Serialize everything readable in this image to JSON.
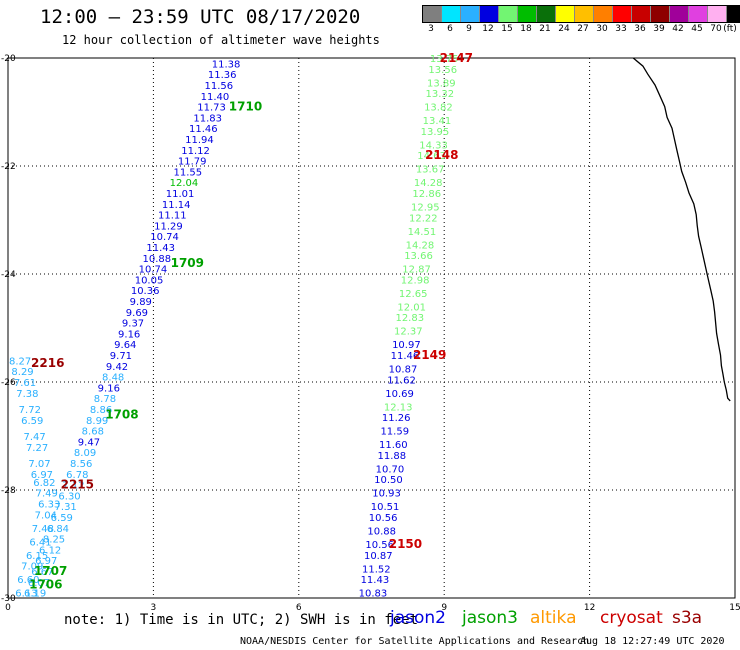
{
  "header": {
    "title": "12:00 – 23:59 UTC 08/17/2020",
    "subtitle": "12 hour collection of altimeter wave heights"
  },
  "legend": {
    "unit": "(ft)",
    "bins": [
      {
        "label": "3",
        "color": "#7f7f7f"
      },
      {
        "label": "6",
        "color": "#00e5ff"
      },
      {
        "label": "9",
        "color": "#2ab0ff"
      },
      {
        "label": "12",
        "color": "#0000e0"
      },
      {
        "label": "15",
        "color": "#72f572"
      },
      {
        "label": "18",
        "color": "#00bd00"
      },
      {
        "label": "21",
        "color": "#0a700a"
      },
      {
        "label": "24",
        "color": "#ffff00"
      },
      {
        "label": "27",
        "color": "#ffbf00"
      },
      {
        "label": "30",
        "color": "#ff7f00"
      },
      {
        "label": "33",
        "color": "#ff0000"
      },
      {
        "label": "36",
        "color": "#c80000"
      },
      {
        "label": "39",
        "color": "#8e0000"
      },
      {
        "label": "42",
        "color": "#a0009a"
      },
      {
        "label": "45",
        "color": "#e040e0"
      },
      {
        "label": "70",
        "color": "#ffb0f0"
      },
      {
        "label": "",
        "color": "#000000"
      }
    ]
  },
  "footer": {
    "note": "note: 1) Time is in UTC; 2) SWH is in feet",
    "satellites": [
      {
        "name": "jason2",
        "color": "#0000e0"
      },
      {
        "name": "jason3",
        "color": "#00a000"
      },
      {
        "name": "altika",
        "color": "#ff9900"
      },
      {
        "name": "cryosat",
        "color": "#cc0000"
      },
      {
        "name": "s3a",
        "color": "#990000"
      }
    ],
    "credit": "NOAA/NESDIS Center for Satellite Applications and Research",
    "timestamp": "Aug 18 12:27:49 UTC 2020"
  },
  "chart_data": {
    "type": "scatter",
    "title": "12 hour collection of altimeter wave heights",
    "xlim": [
      0,
      15
    ],
    "ylim": [
      -30,
      -20
    ],
    "x_ticks": [
      "0",
      "3",
      "6",
      "9",
      "12",
      "15"
    ],
    "y_ticks": [
      "-20",
      "-22",
      "-24",
      "-26",
      "-28",
      "-30"
    ],
    "grid": true,
    "series": [
      {
        "name": "track-1",
        "points": [
          {
            "x": 4.5,
            "y": -20.1,
            "v": "11.38",
            "c": "#0000e0"
          },
          {
            "x": 4.42,
            "y": -20.3,
            "v": "11.36",
            "c": "#0000e0"
          },
          {
            "x": 4.35,
            "y": -20.5,
            "v": "11.56",
            "c": "#0000e0"
          },
          {
            "x": 4.27,
            "y": -20.7,
            "v": "11.40",
            "c": "#0000e0"
          },
          {
            "x": 4.2,
            "y": -20.9,
            "v": "11.73",
            "c": "#0000e0"
          },
          {
            "x": 4.12,
            "y": -21.1,
            "v": "11.83",
            "c": "#0000e0"
          },
          {
            "x": 4.03,
            "y": -21.3,
            "v": "11.46",
            "c": "#0000e0"
          },
          {
            "x": 3.95,
            "y": -21.5,
            "v": "11.94",
            "c": "#0000e0"
          },
          {
            "x": 3.87,
            "y": -21.7,
            "v": "11.12",
            "c": "#0000e0"
          },
          {
            "x": 3.8,
            "y": -21.9,
            "v": "11.79",
            "c": "#0000e0"
          },
          {
            "x": 3.71,
            "y": -22.1,
            "v": "11.55",
            "c": "#0000e0"
          },
          {
            "x": 3.63,
            "y": -22.3,
            "v": "12.04",
            "c": "#00bd00"
          },
          {
            "x": 3.55,
            "y": -22.5,
            "v": "11.01",
            "c": "#0000e0"
          },
          {
            "x": 3.47,
            "y": -22.7,
            "v": "11.14",
            "c": "#0000e0"
          },
          {
            "x": 3.39,
            "y": -22.9,
            "v": "11.11",
            "c": "#0000e0"
          },
          {
            "x": 3.31,
            "y": -23.1,
            "v": "11.29",
            "c": "#0000e0"
          },
          {
            "x": 3.23,
            "y": -23.3,
            "v": "10.74",
            "c": "#0000e0"
          },
          {
            "x": 3.15,
            "y": -23.5,
            "v": "11.43",
            "c": "#0000e0"
          },
          {
            "x": 3.07,
            "y": -23.7,
            "v": "10.88",
            "c": "#0000e0"
          },
          {
            "x": 2.99,
            "y": -23.9,
            "v": "10.74",
            "c": "#0000e0"
          },
          {
            "x": 2.91,
            "y": -24.1,
            "v": "10.05",
            "c": "#0000e0"
          },
          {
            "x": 2.83,
            "y": -24.3,
            "v": "10.36",
            "c": "#0000e0"
          },
          {
            "x": 2.74,
            "y": -24.5,
            "v": "9.89",
            "c": "#0000e0"
          },
          {
            "x": 2.66,
            "y": -24.7,
            "v": "9.69",
            "c": "#0000e0"
          },
          {
            "x": 2.58,
            "y": -24.9,
            "v": "9.37",
            "c": "#0000e0"
          },
          {
            "x": 2.5,
            "y": -25.1,
            "v": "9.16",
            "c": "#0000e0"
          },
          {
            "x": 2.42,
            "y": -25.3,
            "v": "9.64",
            "c": "#0000e0"
          },
          {
            "x": 2.33,
            "y": -25.5,
            "v": "9.71",
            "c": "#0000e0"
          },
          {
            "x": 2.25,
            "y": -25.7,
            "v": "9.42",
            "c": "#0000e0"
          },
          {
            "x": 2.17,
            "y": -25.9,
            "v": "8.48",
            "c": "#2ab0ff"
          },
          {
            "x": 2.08,
            "y": -26.1,
            "v": "9.16",
            "c": "#0000e0"
          },
          {
            "x": 2.0,
            "y": -26.3,
            "v": "8.78",
            "c": "#2ab0ff"
          },
          {
            "x": 1.92,
            "y": -26.5,
            "v": "8.86",
            "c": "#2ab0ff"
          },
          {
            "x": 1.84,
            "y": -26.7,
            "v": "8.99",
            "c": "#2ab0ff"
          },
          {
            "x": 1.75,
            "y": -26.9,
            "v": "8.68",
            "c": "#2ab0ff"
          },
          {
            "x": 1.67,
            "y": -27.1,
            "v": "9.47",
            "c": "#0000e0"
          },
          {
            "x": 1.59,
            "y": -27.3,
            "v": "8.09",
            "c": "#2ab0ff"
          },
          {
            "x": 1.51,
            "y": -27.5,
            "v": "8.56",
            "c": "#2ab0ff"
          },
          {
            "x": 1.43,
            "y": -27.7,
            "v": "6.78",
            "c": "#2ab0ff"
          },
          {
            "x": 1.35,
            "y": -27.9,
            "v": "7.12",
            "c": "#2ab0ff"
          },
          {
            "x": 1.27,
            "y": -28.1,
            "v": "6.30",
            "c": "#2ab0ff"
          },
          {
            "x": 1.19,
            "y": -28.3,
            "v": "7.31",
            "c": "#2ab0ff"
          },
          {
            "x": 1.11,
            "y": -28.5,
            "v": "6.59",
            "c": "#2ab0ff"
          },
          {
            "x": 1.03,
            "y": -28.7,
            "v": "6.84",
            "c": "#2ab0ff"
          },
          {
            "x": 0.95,
            "y": -28.9,
            "v": "8.25",
            "c": "#2ab0ff"
          },
          {
            "x": 0.87,
            "y": -29.1,
            "v": "6.12",
            "c": "#2ab0ff"
          },
          {
            "x": 0.79,
            "y": -29.3,
            "v": "6.97",
            "c": "#2ab0ff"
          },
          {
            "x": 0.71,
            "y": -29.5,
            "v": "6.67",
            "c": "#2ab0ff"
          },
          {
            "x": 0.64,
            "y": -29.7,
            "v": "6.07",
            "c": "#2ab0ff"
          },
          {
            "x": 0.56,
            "y": -29.9,
            "v": "6.19",
            "c": "#2ab0ff"
          }
        ]
      },
      {
        "name": "track-2",
        "points": [
          {
            "x": 0.25,
            "y": -25.6,
            "v": "8.27",
            "c": "#2ab0ff"
          },
          {
            "x": 0.3,
            "y": -25.8,
            "v": "8.29",
            "c": "#2ab0ff"
          },
          {
            "x": 0.35,
            "y": -26.0,
            "v": "7.61",
            "c": "#2ab0ff"
          },
          {
            "x": 0.4,
            "y": -26.2,
            "v": "7.38",
            "c": "#2ab0ff"
          },
          {
            "x": 0.45,
            "y": -26.5,
            "v": "7.72",
            "c": "#2ab0ff"
          },
          {
            "x": 0.5,
            "y": -26.7,
            "v": "6.59",
            "c": "#2ab0ff"
          },
          {
            "x": 0.55,
            "y": -27.0,
            "v": "7.47",
            "c": "#2ab0ff"
          },
          {
            "x": 0.6,
            "y": -27.2,
            "v": "7.27",
            "c": "#2ab0ff"
          },
          {
            "x": 0.65,
            "y": -27.5,
            "v": "7.07",
            "c": "#2ab0ff"
          },
          {
            "x": 0.7,
            "y": -27.7,
            "v": "6.97",
            "c": "#2ab0ff"
          },
          {
            "x": 0.75,
            "y": -27.85,
            "v": "6.82",
            "c": "#2ab0ff"
          },
          {
            "x": 0.8,
            "y": -28.05,
            "v": "7.49",
            "c": "#2ab0ff"
          },
          {
            "x": 0.85,
            "y": -28.25,
            "v": "6.33",
            "c": "#2ab0ff"
          },
          {
            "x": 0.78,
            "y": -28.45,
            "v": "7.04",
            "c": "#2ab0ff"
          },
          {
            "x": 0.72,
            "y": -28.7,
            "v": "7.48",
            "c": "#2ab0ff"
          },
          {
            "x": 0.67,
            "y": -28.95,
            "v": "6.41",
            "c": "#2ab0ff"
          },
          {
            "x": 0.6,
            "y": -29.2,
            "v": "6.15",
            "c": "#2ab0ff"
          },
          {
            "x": 0.5,
            "y": -29.4,
            "v": "7.09",
            "c": "#2ab0ff"
          },
          {
            "x": 0.42,
            "y": -29.65,
            "v": "6.60",
            "c": "#2ab0ff"
          },
          {
            "x": 0.38,
            "y": -29.9,
            "v": "6.13",
            "c": "#2ab0ff"
          }
        ]
      },
      {
        "name": "track-3",
        "points": [
          {
            "x": 9.0,
            "y": -20.0,
            "v": "13.75",
            "c": "#72f572"
          },
          {
            "x": 8.97,
            "y": -20.2,
            "v": "13.56",
            "c": "#72f572"
          },
          {
            "x": 8.94,
            "y": -20.45,
            "v": "13.89",
            "c": "#72f572"
          },
          {
            "x": 8.91,
            "y": -20.65,
            "v": "13.32",
            "c": "#72f572"
          },
          {
            "x": 8.88,
            "y": -20.9,
            "v": "13.82",
            "c": "#72f572"
          },
          {
            "x": 8.85,
            "y": -21.15,
            "v": "13.41",
            "c": "#72f572"
          },
          {
            "x": 8.81,
            "y": -21.35,
            "v": "13.95",
            "c": "#72f572"
          },
          {
            "x": 8.78,
            "y": -21.6,
            "v": "14.33",
            "c": "#72f572"
          },
          {
            "x": 8.74,
            "y": -21.8,
            "v": "14.63",
            "c": "#72f572"
          },
          {
            "x": 8.71,
            "y": -22.05,
            "v": "13.67",
            "c": "#72f572"
          },
          {
            "x": 8.67,
            "y": -22.3,
            "v": "14.28",
            "c": "#72f572"
          },
          {
            "x": 8.64,
            "y": -22.5,
            "v": "12.86",
            "c": "#72f572"
          },
          {
            "x": 8.61,
            "y": -22.75,
            "v": "12.95",
            "c": "#72f572"
          },
          {
            "x": 8.57,
            "y": -22.95,
            "v": "12.22",
            "c": "#72f572"
          },
          {
            "x": 8.54,
            "y": -23.2,
            "v": "14.51",
            "c": "#72f572"
          },
          {
            "x": 8.5,
            "y": -23.45,
            "v": "14.28",
            "c": "#72f572"
          },
          {
            "x": 8.47,
            "y": -23.65,
            "v": "13.66",
            "c": "#72f572"
          },
          {
            "x": 8.43,
            "y": -23.9,
            "v": "12.87",
            "c": "#72f572"
          },
          {
            "x": 8.4,
            "y": -24.1,
            "v": "12.98",
            "c": "#72f572"
          },
          {
            "x": 8.36,
            "y": -24.35,
            "v": "12.65",
            "c": "#72f572"
          },
          {
            "x": 8.33,
            "y": -24.6,
            "v": "12.01",
            "c": "#72f572"
          },
          {
            "x": 8.29,
            "y": -24.8,
            "v": "12.83",
            "c": "#72f572"
          },
          {
            "x": 8.26,
            "y": -25.05,
            "v": "12.37",
            "c": "#72f572"
          },
          {
            "x": 8.22,
            "y": -25.3,
            "v": "10.97",
            "c": "#0000e0"
          },
          {
            "x": 8.19,
            "y": -25.5,
            "v": "11.46",
            "c": "#0000e0"
          },
          {
            "x": 8.15,
            "y": -25.75,
            "v": "10.87",
            "c": "#0000e0"
          },
          {
            "x": 8.12,
            "y": -25.95,
            "v": "11.62",
            "c": "#0000e0"
          },
          {
            "x": 8.08,
            "y": -26.2,
            "v": "10.69",
            "c": "#0000e0"
          },
          {
            "x": 8.05,
            "y": -26.45,
            "v": "12.13",
            "c": "#72f572"
          },
          {
            "x": 8.01,
            "y": -26.65,
            "v": "11.26",
            "c": "#0000e0"
          },
          {
            "x": 7.98,
            "y": -26.9,
            "v": "11.59",
            "c": "#0000e0"
          },
          {
            "x": 7.95,
            "y": -27.15,
            "v": "11.60",
            "c": "#0000e0"
          },
          {
            "x": 7.92,
            "y": -27.35,
            "v": "11.88",
            "c": "#0000e0"
          },
          {
            "x": 7.88,
            "y": -27.6,
            "v": "10.70",
            "c": "#0000e0"
          },
          {
            "x": 7.85,
            "y": -27.8,
            "v": "10.50",
            "c": "#0000e0"
          },
          {
            "x": 7.81,
            "y": -28.05,
            "v": "10.93",
            "c": "#0000e0"
          },
          {
            "x": 7.78,
            "y": -28.3,
            "v": "10.51",
            "c": "#0000e0"
          },
          {
            "x": 7.74,
            "y": -28.5,
            "v": "10.56",
            "c": "#0000e0"
          },
          {
            "x": 7.71,
            "y": -28.75,
            "v": "10.88",
            "c": "#0000e0"
          },
          {
            "x": 7.67,
            "y": -29.0,
            "v": "10.56",
            "c": "#0000e0"
          },
          {
            "x": 7.64,
            "y": -29.2,
            "v": "10.87",
            "c": "#0000e0"
          },
          {
            "x": 7.6,
            "y": -29.45,
            "v": "11.52",
            "c": "#0000e0"
          },
          {
            "x": 7.57,
            "y": -29.65,
            "v": "11.43",
            "c": "#0000e0"
          },
          {
            "x": 7.53,
            "y": -29.9,
            "v": "10.83",
            "c": "#0000e0"
          }
        ]
      }
    ],
    "time_labels": [
      {
        "x": 9.25,
        "y": -20.0,
        "text": "2147",
        "c": "#cc0000"
      },
      {
        "x": 8.95,
        "y": -21.8,
        "text": "2148",
        "c": "#cc0000"
      },
      {
        "x": 8.7,
        "y": -25.5,
        "text": "2149",
        "c": "#cc0000"
      },
      {
        "x": 8.2,
        "y": -29.0,
        "text": "2150",
        "c": "#cc0000"
      },
      {
        "x": 4.9,
        "y": -20.9,
        "text": "1710",
        "c": "#00a000"
      },
      {
        "x": 3.7,
        "y": -23.8,
        "text": "1709",
        "c": "#00a000"
      },
      {
        "x": 2.35,
        "y": -26.6,
        "text": "1708",
        "c": "#00a000"
      },
      {
        "x": 0.88,
        "y": -29.5,
        "text": "1707",
        "c": "#00a000"
      },
      {
        "x": 0.78,
        "y": -29.75,
        "text": "1706",
        "c": "#00a000"
      },
      {
        "x": 0.82,
        "y": -25.65,
        "text": "2216",
        "c": "#990000"
      },
      {
        "x": 1.43,
        "y": -27.9,
        "text": "2215",
        "c": "#990000"
      }
    ],
    "coastline": [
      [
        12.9,
        -20.0
      ],
      [
        13.1,
        -20.15
      ],
      [
        13.2,
        -20.3
      ],
      [
        13.35,
        -20.5
      ],
      [
        13.45,
        -20.7
      ],
      [
        13.55,
        -20.9
      ],
      [
        13.6,
        -21.1
      ],
      [
        13.7,
        -21.3
      ],
      [
        13.75,
        -21.5
      ],
      [
        13.8,
        -21.7
      ],
      [
        13.85,
        -21.9
      ],
      [
        13.9,
        -22.1
      ],
      [
        13.98,
        -22.3
      ],
      [
        14.05,
        -22.5
      ],
      [
        14.15,
        -22.7
      ],
      [
        14.2,
        -22.9
      ],
      [
        14.22,
        -23.1
      ],
      [
        14.25,
        -23.3
      ],
      [
        14.3,
        -23.5
      ],
      [
        14.35,
        -23.7
      ],
      [
        14.4,
        -23.9
      ],
      [
        14.45,
        -24.1
      ],
      [
        14.5,
        -24.3
      ],
      [
        14.55,
        -24.5
      ],
      [
        14.58,
        -24.7
      ],
      [
        14.6,
        -24.9
      ],
      [
        14.62,
        -25.1
      ],
      [
        14.66,
        -25.3
      ],
      [
        14.7,
        -25.5
      ],
      [
        14.72,
        -25.7
      ],
      [
        14.75,
        -25.85
      ],
      [
        14.78,
        -26.0
      ],
      [
        14.82,
        -26.15
      ],
      [
        14.85,
        -26.3
      ],
      [
        14.9,
        -26.35
      ]
    ]
  }
}
